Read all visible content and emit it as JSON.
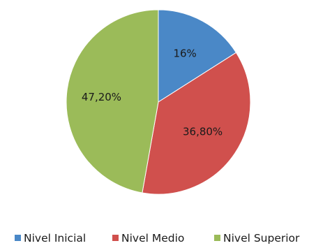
{
  "chart_data": {
    "type": "pie",
    "categories": [
      "Nivel Inicial",
      "Nivel Medio",
      "Nivel Superior"
    ],
    "values": [
      16,
      36.8,
      47.2
    ],
    "data_labels": [
      "16%",
      "36,80%",
      "47,20%"
    ],
    "colors": [
      "#4a88c7",
      "#d0504d",
      "#9bbb59"
    ],
    "legend_position": "bottom",
    "title": ""
  }
}
